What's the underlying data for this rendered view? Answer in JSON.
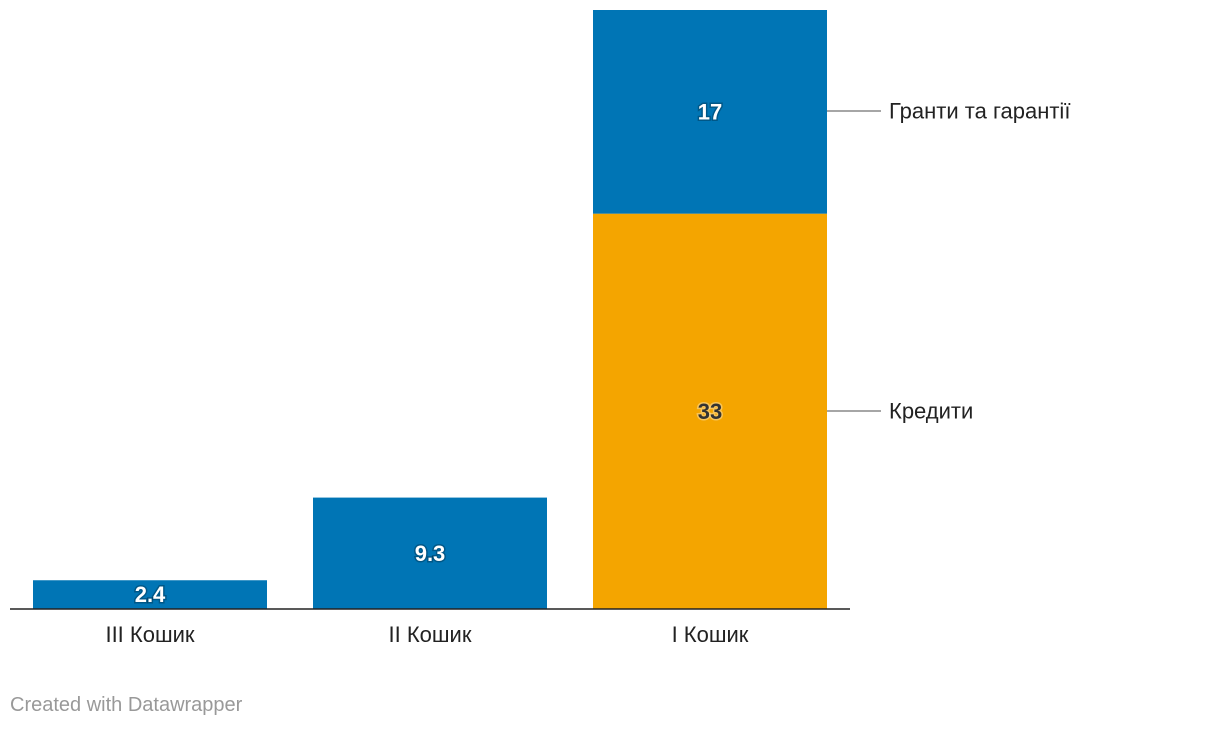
{
  "chart_data": {
    "type": "bar",
    "stacked": true,
    "categories": [
      "III Кошик",
      "II Кошик",
      "I Кошик"
    ],
    "series": [
      {
        "name": "Кредити",
        "values": [
          0,
          0,
          33
        ],
        "color": "#f4a500"
      },
      {
        "name": "Гранти та гарантії",
        "values": [
          2.4,
          9.3,
          17
        ],
        "color": "#0075b5"
      }
    ],
    "data_labels": [
      {
        "category": "III Кошик",
        "series": "Гранти та гарантії",
        "text": "2.4"
      },
      {
        "category": "II Кошик",
        "series": "Гранти та гарантії",
        "text": "9.3"
      },
      {
        "category": "I Кошик",
        "series": "Гранти та гарантії",
        "text": "17"
      },
      {
        "category": "I Кошик",
        "series": "Кредити",
        "text": "33"
      }
    ],
    "ylim": [
      0,
      50
    ],
    "grid": false,
    "legend": "right"
  },
  "footer": {
    "credit": "Created with Datawrapper"
  }
}
